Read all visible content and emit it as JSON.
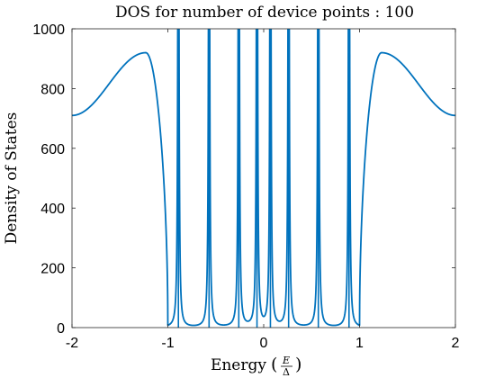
{
  "chart_data": {
    "type": "line",
    "title": "DOS for number of device points : 100",
    "xlabel": "Energy",
    "xlabel_fraction": {
      "numerator": "E",
      "denominator": "Δ"
    },
    "ylabel": "Density of States",
    "xlim": [
      -2,
      2
    ],
    "ylim": [
      0,
      1000
    ],
    "x_ticks": [
      -2,
      -1,
      0,
      1,
      2
    ],
    "x_tick_labels": [
      "-2",
      "-1",
      "0",
      "1",
      "2"
    ],
    "y_ticks": [
      0,
      200,
      400,
      600,
      800,
      1000
    ],
    "y_tick_labels": [
      "0",
      "200",
      "400",
      "600",
      "800",
      "1000"
    ],
    "grid": false,
    "series": [
      {
        "color": "#0072BD",
        "gap_edge": 1.0,
        "peak_energy": 1.23,
        "peak_value": 920,
        "value_at_x_limit": 710,
        "in_gap_resonances": [
          -0.89,
          -0.57,
          -0.26,
          -0.07,
          0.07,
          0.26,
          0.57,
          0.89
        ]
      }
    ]
  }
}
